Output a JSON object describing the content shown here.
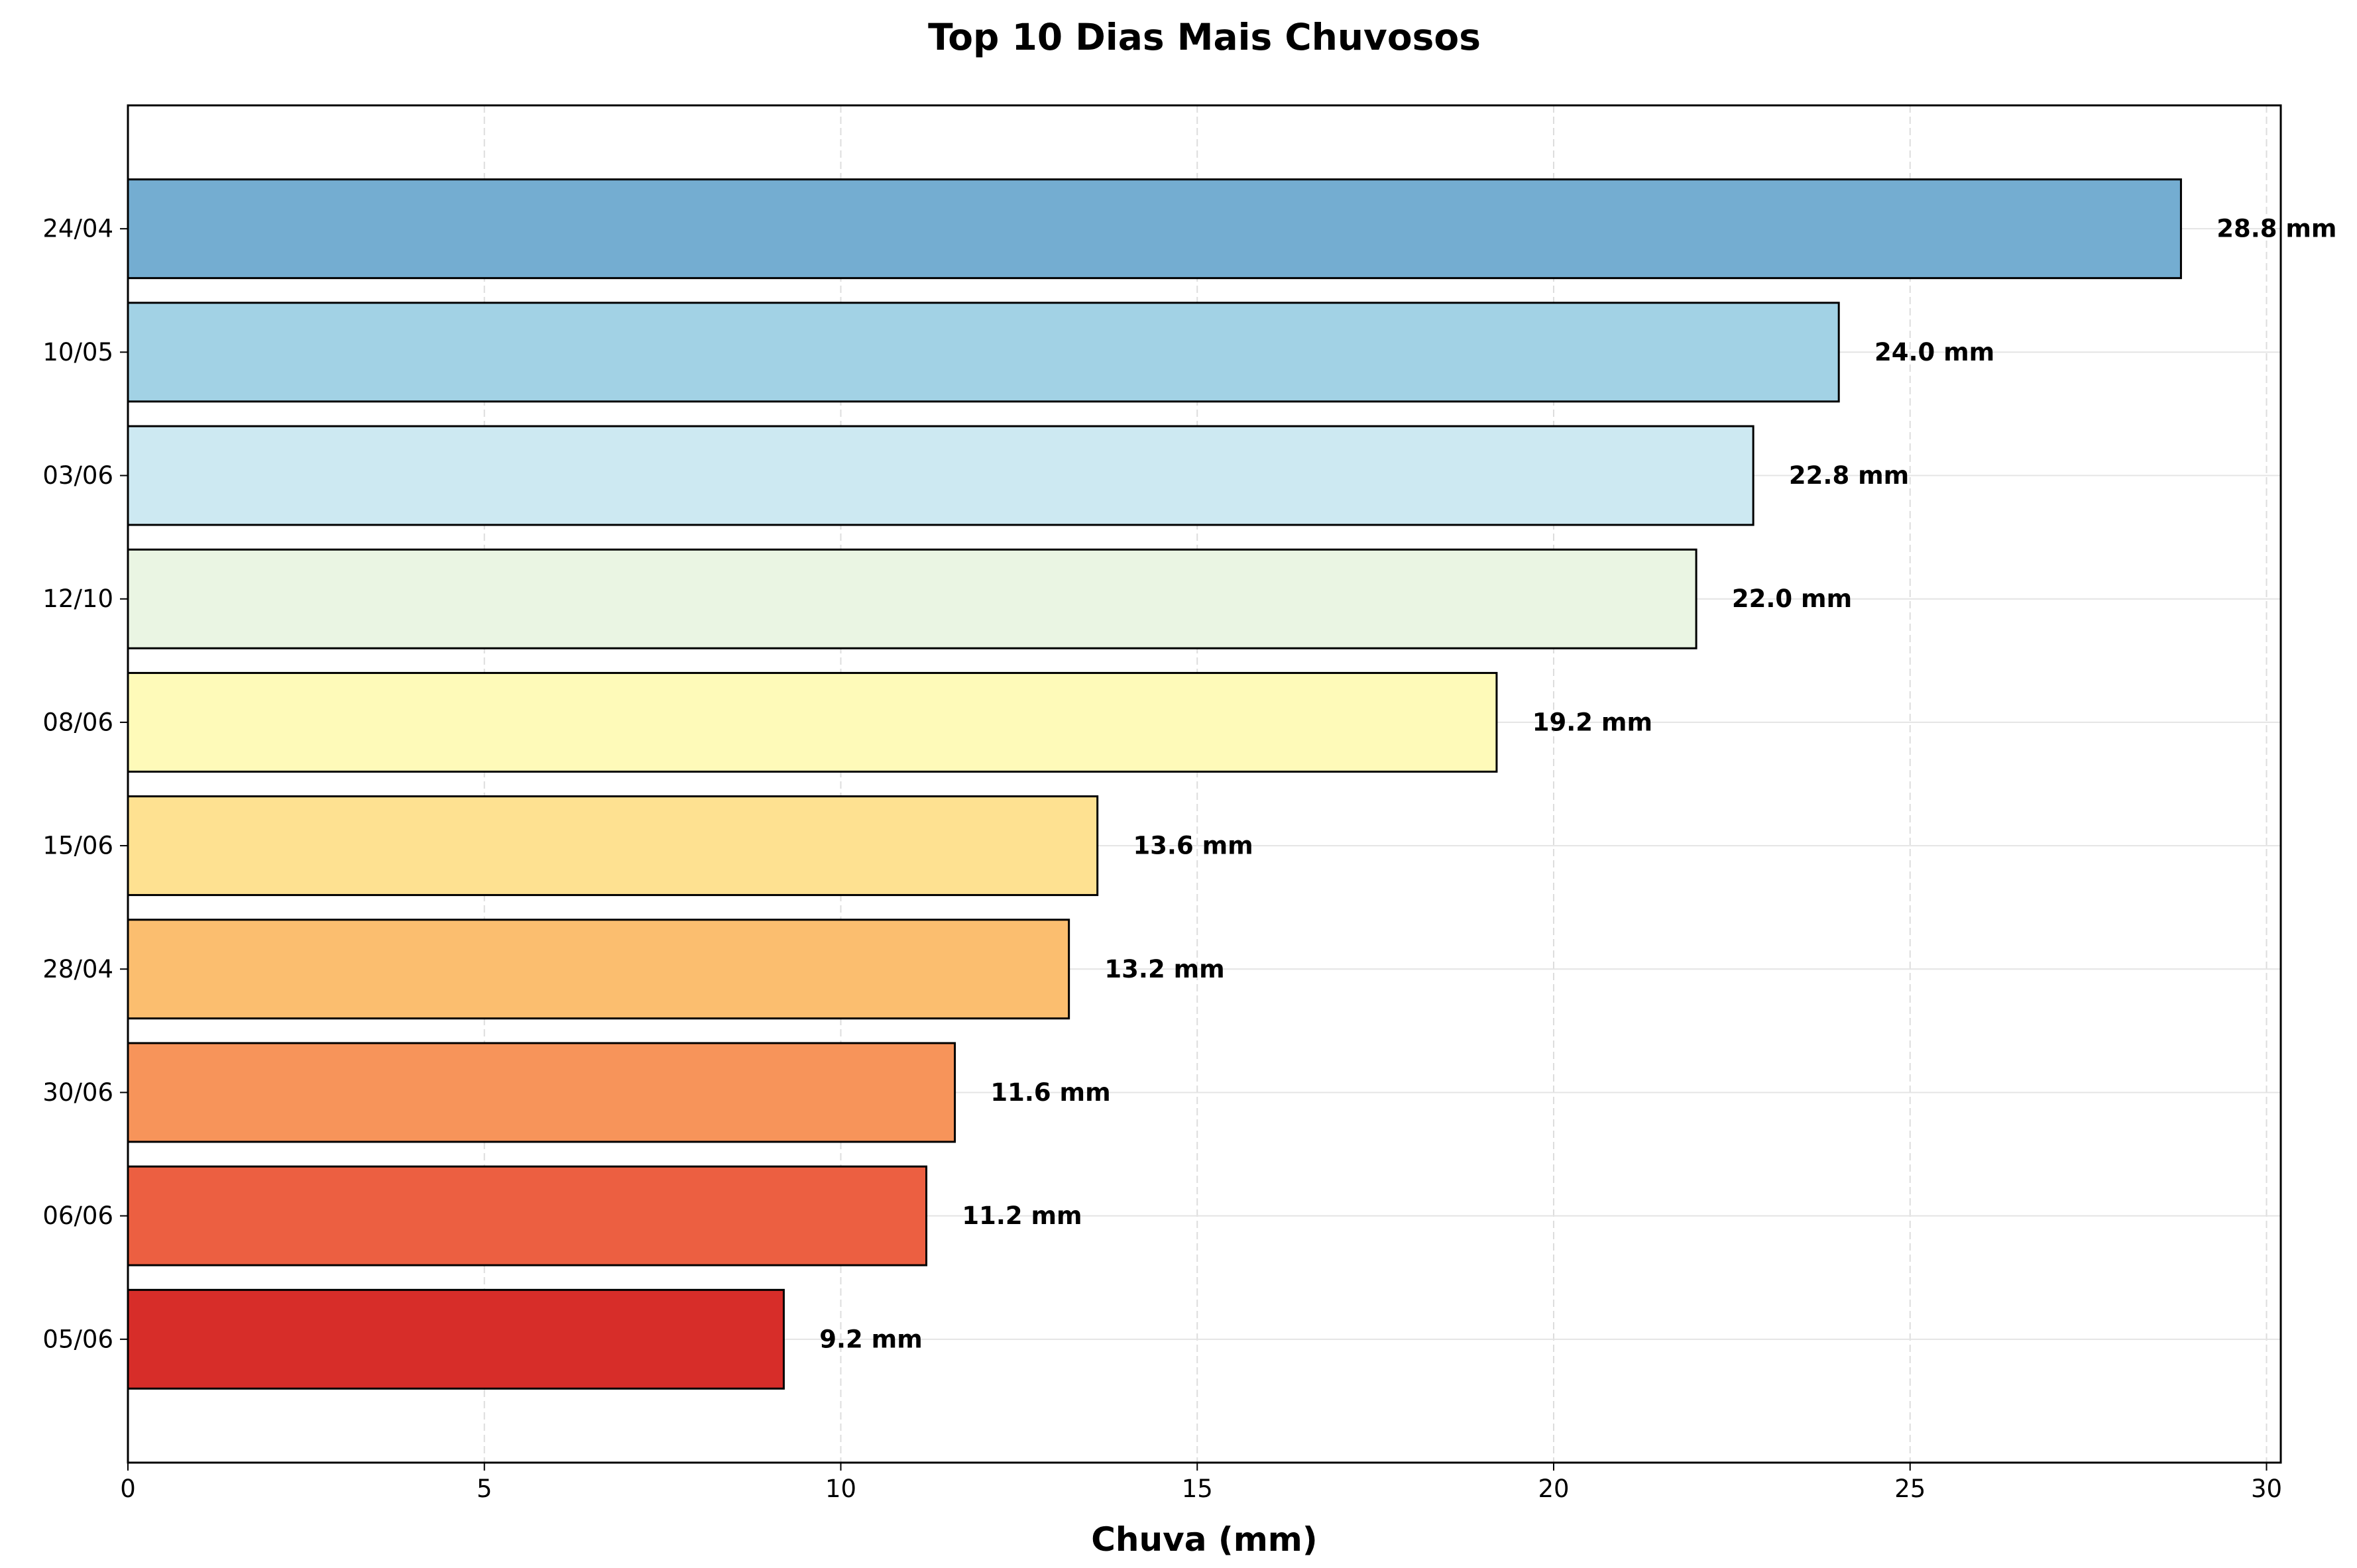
{
  "chart_data": {
    "type": "bar",
    "orientation": "horizontal",
    "title": "Top 10 Dias Mais Chuvosos",
    "xlabel": "Chuva (mm)",
    "ylabel": "",
    "categories": [
      "24/04",
      "10/05",
      "03/06",
      "12/10",
      "08/06",
      "15/06",
      "28/04",
      "30/06",
      "06/06",
      "05/06"
    ],
    "values": [
      28.8,
      24.0,
      22.8,
      22.0,
      19.2,
      13.6,
      13.2,
      11.6,
      11.2,
      9.2
    ],
    "value_labels": [
      "28.8 mm",
      "24.0 mm",
      "22.8 mm",
      "22.0 mm",
      "19.2 mm",
      "13.6 mm",
      "13.2 mm",
      "11.6 mm",
      "11.2 mm",
      "9.2 mm"
    ],
    "colors": [
      "#74add1",
      "#a2d2e5",
      "#cde9f2",
      "#eaf5e3",
      "#fefab9",
      "#fee191",
      "#fbbe6f",
      "#f7945a",
      "#ec5f41",
      "#d72d29"
    ],
    "xlim": [
      0,
      30.2
    ],
    "xticks": [
      0,
      5,
      10,
      15,
      20,
      25,
      30
    ],
    "xtick_labels": [
      "0",
      "5",
      "10",
      "15",
      "20",
      "25",
      "30"
    ],
    "grid": true
  }
}
